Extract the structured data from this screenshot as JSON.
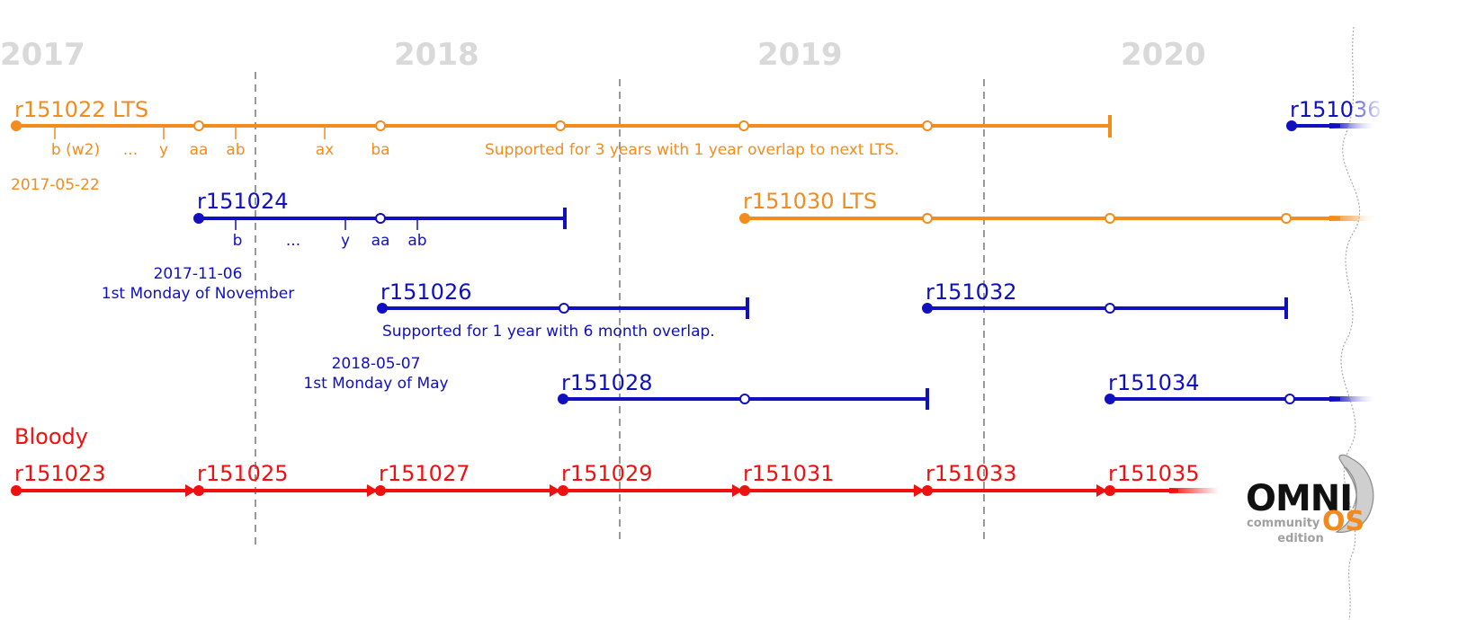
{
  "colors": {
    "lts": "#f28c1c",
    "stable": "#1010c0",
    "bloody": "#f01010",
    "year": "#d9d9d9",
    "divider": "#777777"
  },
  "years": [
    "2017",
    "2018",
    "2019",
    "2020"
  ],
  "lts_r151022": {
    "label": "r151022 LTS",
    "date": "2017-05-22",
    "ticks": [
      "b (w2)",
      "...",
      "y",
      "aa",
      "ab",
      "ax",
      "ba"
    ],
    "note": "Supported for 3 years with 1 year overlap to next LTS."
  },
  "stable_r151024": {
    "label": "r151024",
    "ticks": [
      "b",
      "...",
      "y",
      "aa",
      "ab"
    ],
    "date": "2017-11-06",
    "date_note": "1st Monday of November"
  },
  "stable_r151026": {
    "label": "r151026",
    "note": "Supported for 1 year with 6 month overlap.",
    "date": "2018-05-07",
    "date_note": "1st Monday of May"
  },
  "stable_r151028": {
    "label": "r151028"
  },
  "lts_r151030": {
    "label": "r151030 LTS"
  },
  "stable_r151032": {
    "label": "r151032"
  },
  "stable_r151034": {
    "label": "r151034"
  },
  "stable_r151036": {
    "label": "r151036"
  },
  "bloody": {
    "title": "Bloody",
    "releases": [
      "r151023",
      "r151025",
      "r151027",
      "r151029",
      "r151031",
      "r151033",
      "r151035"
    ]
  },
  "logo": {
    "main": "OMNI",
    "os": "OS",
    "line1": "community",
    "line2": "edition"
  }
}
